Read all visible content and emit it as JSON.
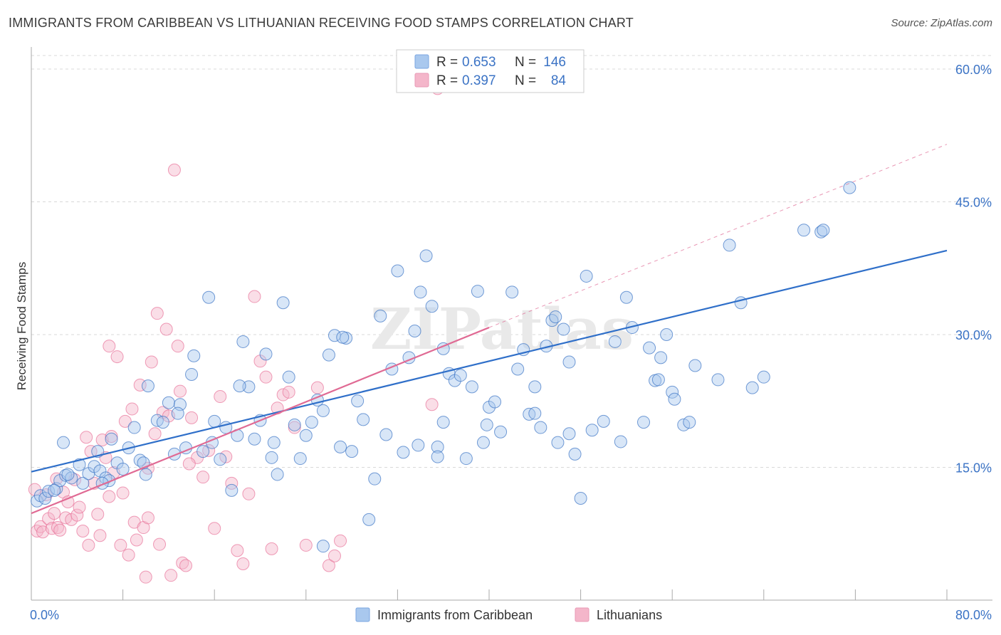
{
  "title": "IMMIGRANTS FROM CARIBBEAN VS LITHUANIAN RECEIVING FOOD STAMPS CORRELATION CHART",
  "source": "Source: ZipAtlas.com",
  "watermark": "ZIPatlas",
  "colors": {
    "blue": "#3b73c5",
    "blue_fill": "#a9c8ee",
    "blue_line": "#2f6fc9",
    "pink": "#e8739a",
    "pink_fill": "#f4b6ca",
    "pink_line": "#e06a94",
    "grid": "#d8d8d8"
  },
  "legend": {
    "r_label": "R =",
    "n_label": "N =",
    "rows": [
      {
        "r": "0.653",
        "n": "146",
        "series": "blue"
      },
      {
        "r": "0.397",
        "n": "84",
        "series": "pink"
      }
    ]
  },
  "chart_data": {
    "type": "scatter",
    "title": "IMMIGRANTS FROM CARIBBEAN VS LITHUANIAN RECEIVING FOOD STAMPS CORRELATION CHART",
    "xlabel": "",
    "ylabel": "Receiving Food Stamps",
    "xlim": [
      0,
      80
    ],
    "ylim": [
      0,
      62
    ],
    "x_tick_labels": [
      "0.0%",
      "80.0%"
    ],
    "y_ticks": [
      15,
      30,
      45,
      60
    ],
    "y_tick_labels": [
      "15.0%",
      "30.0%",
      "45.0%",
      "60.0%"
    ],
    "grid": "horizontal dashed",
    "legend_position": "top-center",
    "series": [
      {
        "name": "Immigrants from Caribbean",
        "color": "#3b73c5",
        "r": 0.653,
        "n": 146,
        "trend": {
          "x": [
            0,
            80
          ],
          "y": [
            14.5,
            39.5
          ],
          "style": "solid"
        },
        "points": [
          [
            0.5,
            11.2
          ],
          [
            0.8,
            11.8
          ],
          [
            1.2,
            11.5
          ],
          [
            1.5,
            12.3
          ],
          [
            2.2,
            12.6
          ],
          [
            2.5,
            13.5
          ],
          [
            3,
            14.1
          ],
          [
            3.5,
            13.8
          ],
          [
            2.8,
            17.8
          ],
          [
            4.2,
            15.3
          ],
          [
            4.5,
            13.2
          ],
          [
            5,
            14.3
          ],
          [
            5.5,
            15.1
          ],
          [
            5.8,
            16.8
          ],
          [
            6,
            14.6
          ],
          [
            6.5,
            13.8
          ],
          [
            6.8,
            13.5
          ],
          [
            7,
            18.2
          ],
          [
            7.5,
            15.5
          ],
          [
            8,
            14.8
          ],
          [
            8.5,
            17.2
          ],
          [
            9,
            19.5
          ],
          [
            9.5,
            15.8
          ],
          [
            10,
            14.2
          ],
          [
            10.2,
            24.2
          ],
          [
            11,
            20.3
          ],
          [
            11.5,
            20.1
          ],
          [
            12,
            22.3
          ],
          [
            12.5,
            16.5
          ],
          [
            13,
            22.1
          ],
          [
            13.5,
            17.2
          ],
          [
            14,
            25.5
          ],
          [
            14.2,
            27.6
          ],
          [
            15,
            16.8
          ],
          [
            15.5,
            34.2
          ],
          [
            16,
            20.2
          ],
          [
            16.5,
            15.9
          ],
          [
            17,
            19.5
          ],
          [
            17.5,
            12.4
          ],
          [
            18,
            18.6
          ],
          [
            18.5,
            29.2
          ],
          [
            19,
            24.1
          ],
          [
            19.5,
            18.2
          ],
          [
            20,
            20.3
          ],
          [
            20.5,
            27.8
          ],
          [
            21,
            16.1
          ],
          [
            21.5,
            14.2
          ],
          [
            22,
            33.6
          ],
          [
            22.5,
            25.2
          ],
          [
            23,
            19.8
          ],
          [
            23.5,
            16.0
          ],
          [
            24,
            18.6
          ],
          [
            24.5,
            20.1
          ],
          [
            25,
            22.6
          ],
          [
            25.5,
            21.4
          ],
          [
            26,
            27.7
          ],
          [
            26.5,
            29.9
          ],
          [
            27,
            17.3
          ],
          [
            27.5,
            29.6
          ],
          [
            28,
            16.8
          ],
          [
            28.5,
            22.5
          ],
          [
            29,
            20.4
          ],
          [
            29.5,
            9.1
          ],
          [
            30,
            13.7
          ],
          [
            30.5,
            32.1
          ],
          [
            31,
            18.7
          ],
          [
            31.5,
            26.1
          ],
          [
            32,
            37.2
          ],
          [
            32.5,
            16.7
          ],
          [
            33,
            27.4
          ],
          [
            33.5,
            30.4
          ],
          [
            34,
            34.8
          ],
          [
            34.5,
            38.9
          ],
          [
            35,
            33.2
          ],
          [
            35.5,
            17.3
          ],
          [
            36,
            28.4
          ],
          [
            36.5,
            25.6
          ],
          [
            37,
            24.8
          ],
          [
            37.5,
            25.4
          ],
          [
            38,
            16.0
          ],
          [
            38.5,
            24.1
          ],
          [
            39,
            34.9
          ],
          [
            39.5,
            17.8
          ],
          [
            40,
            21.8
          ],
          [
            40.5,
            22.4
          ],
          [
            41,
            19.0
          ],
          [
            42,
            34.8
          ],
          [
            42.5,
            26.1
          ],
          [
            43,
            28.3
          ],
          [
            43.5,
            21.0
          ],
          [
            44,
            24.1
          ],
          [
            44.5,
            19.5
          ],
          [
            45,
            28.7
          ],
          [
            45.5,
            31.6
          ],
          [
            46,
            17.8
          ],
          [
            46.5,
            30.6
          ],
          [
            47,
            26.9
          ],
          [
            47.5,
            16.5
          ],
          [
            48,
            11.5
          ],
          [
            48.5,
            36.6
          ],
          [
            49,
            19.2
          ],
          [
            50,
            20.2
          ],
          [
            51,
            29.2
          ],
          [
            51.5,
            17.9
          ],
          [
            52,
            34.2
          ],
          [
            52.5,
            30.8
          ],
          [
            54,
            28.5
          ],
          [
            54.5,
            24.8
          ],
          [
            54.8,
            24.9
          ],
          [
            55,
            27.4
          ],
          [
            55.5,
            30.0
          ],
          [
            56,
            23.5
          ],
          [
            56.2,
            22.7
          ],
          [
            57,
            19.8
          ],
          [
            57.5,
            20.1
          ],
          [
            58,
            26.5
          ],
          [
            60,
            24.9
          ],
          [
            61,
            40.1
          ],
          [
            62,
            33.6
          ],
          [
            63,
            24.0
          ],
          [
            64,
            25.2
          ],
          [
            67.5,
            41.8
          ],
          [
            69,
            41.6
          ],
          [
            69.2,
            41.8
          ],
          [
            71.5,
            46.6
          ],
          [
            25.5,
            6.1
          ],
          [
            35.5,
            16.2
          ],
          [
            44,
            21.1
          ],
          [
            36,
            20.1
          ],
          [
            53.5,
            20.1
          ],
          [
            47,
            18.8
          ],
          [
            2,
            12.4
          ],
          [
            3.2,
            14.2
          ],
          [
            6.2,
            13.2
          ],
          [
            9.8,
            15.5
          ],
          [
            12.8,
            21.1
          ],
          [
            15.8,
            17.8
          ],
          [
            18.2,
            24.2
          ],
          [
            21.2,
            17.8
          ],
          [
            27.2,
            29.7
          ],
          [
            33.8,
            17.5
          ],
          [
            39.8,
            19.8
          ],
          [
            45.8,
            32.0
          ]
        ]
      },
      {
        "name": "Lithuanians",
        "color": "#e8739a",
        "r": 0.397,
        "n": 84,
        "trend": {
          "x": [
            0,
            40
          ],
          "y": [
            9.8,
            30.8
          ],
          "style": "solid",
          "extended_x": [
            40,
            80
          ],
          "extended_y": [
            30.8,
            51.5
          ],
          "extended_style": "dashed"
        },
        "points": [
          [
            0.3,
            12.5
          ],
          [
            0.5,
            7.8
          ],
          [
            0.8,
            8.3
          ],
          [
            1.0,
            7.7
          ],
          [
            1.3,
            11.9
          ],
          [
            1.5,
            9.2
          ],
          [
            1.8,
            8.1
          ],
          [
            2.0,
            9.8
          ],
          [
            2.3,
            8.2
          ],
          [
            2.5,
            7.9
          ],
          [
            2.8,
            12.2
          ],
          [
            3.0,
            9.3
          ],
          [
            3.2,
            11.1
          ],
          [
            3.5,
            9.1
          ],
          [
            3.8,
            13.6
          ],
          [
            4.0,
            9.6
          ],
          [
            4.2,
            10.5
          ],
          [
            4.5,
            7.8
          ],
          [
            4.8,
            18.4
          ],
          [
            5.0,
            6.2
          ],
          [
            5.2,
            16.8
          ],
          [
            5.5,
            13.2
          ],
          [
            5.8,
            9.7
          ],
          [
            6.0,
            7.3
          ],
          [
            6.2,
            18.1
          ],
          [
            6.5,
            16.1
          ],
          [
            6.8,
            28.7
          ],
          [
            7.0,
            18.5
          ],
          [
            7.2,
            14.4
          ],
          [
            7.5,
            27.5
          ],
          [
            7.8,
            6.2
          ],
          [
            8.0,
            12.1
          ],
          [
            8.2,
            20.2
          ],
          [
            8.5,
            5.1
          ],
          [
            8.8,
            21.6
          ],
          [
            9.0,
            8.8
          ],
          [
            9.2,
            6.8
          ],
          [
            9.5,
            24.3
          ],
          [
            9.8,
            8.2
          ],
          [
            10.0,
            2.6
          ],
          [
            10.2,
            14.9
          ],
          [
            10.5,
            26.9
          ],
          [
            10.8,
            18.8
          ],
          [
            11.0,
            32.4
          ],
          [
            11.2,
            6.3
          ],
          [
            11.5,
            21.2
          ],
          [
            11.8,
            30.6
          ],
          [
            12.0,
            20.8
          ],
          [
            12.2,
            2.8
          ],
          [
            12.5,
            48.6
          ],
          [
            12.8,
            28.7
          ],
          [
            13.0,
            23.6
          ],
          [
            13.2,
            4.2
          ],
          [
            13.5,
            3.9
          ],
          [
            14.0,
            20.6
          ],
          [
            14.5,
            16.1
          ],
          [
            15.0,
            13.9
          ],
          [
            15.5,
            16.9
          ],
          [
            16.0,
            8.1
          ],
          [
            16.5,
            23.0
          ],
          [
            17.0,
            16.2
          ],
          [
            17.5,
            13.2
          ],
          [
            18.0,
            5.6
          ],
          [
            18.5,
            4.1
          ],
          [
            19.0,
            12.0
          ],
          [
            19.5,
            34.3
          ],
          [
            20.0,
            27.0
          ],
          [
            20.5,
            25.2
          ],
          [
            21.0,
            5.8
          ],
          [
            21.5,
            21.7
          ],
          [
            22.0,
            23.2
          ],
          [
            22.5,
            23.5
          ],
          [
            23.0,
            19.5
          ],
          [
            24.0,
            6.2
          ],
          [
            25.0,
            24.0
          ],
          [
            26.0,
            3.9
          ],
          [
            26.5,
            5.0
          ],
          [
            27.0,
            6.7
          ],
          [
            35.0,
            22.1
          ],
          [
            35.5,
            57.8
          ],
          [
            2.2,
            13.7
          ],
          [
            6.8,
            11.7
          ],
          [
            10.2,
            9.3
          ],
          [
            13.8,
            15.4
          ]
        ]
      }
    ]
  },
  "x_axis": {
    "left_label": "0.0%",
    "right_label": "80.0%"
  },
  "y_axis": {
    "title": "Receiving Food Stamps"
  },
  "bottom_legend": [
    {
      "label": "Immigrants from Caribbean",
      "series": "blue"
    },
    {
      "label": "Lithuanians",
      "series": "pink"
    }
  ]
}
